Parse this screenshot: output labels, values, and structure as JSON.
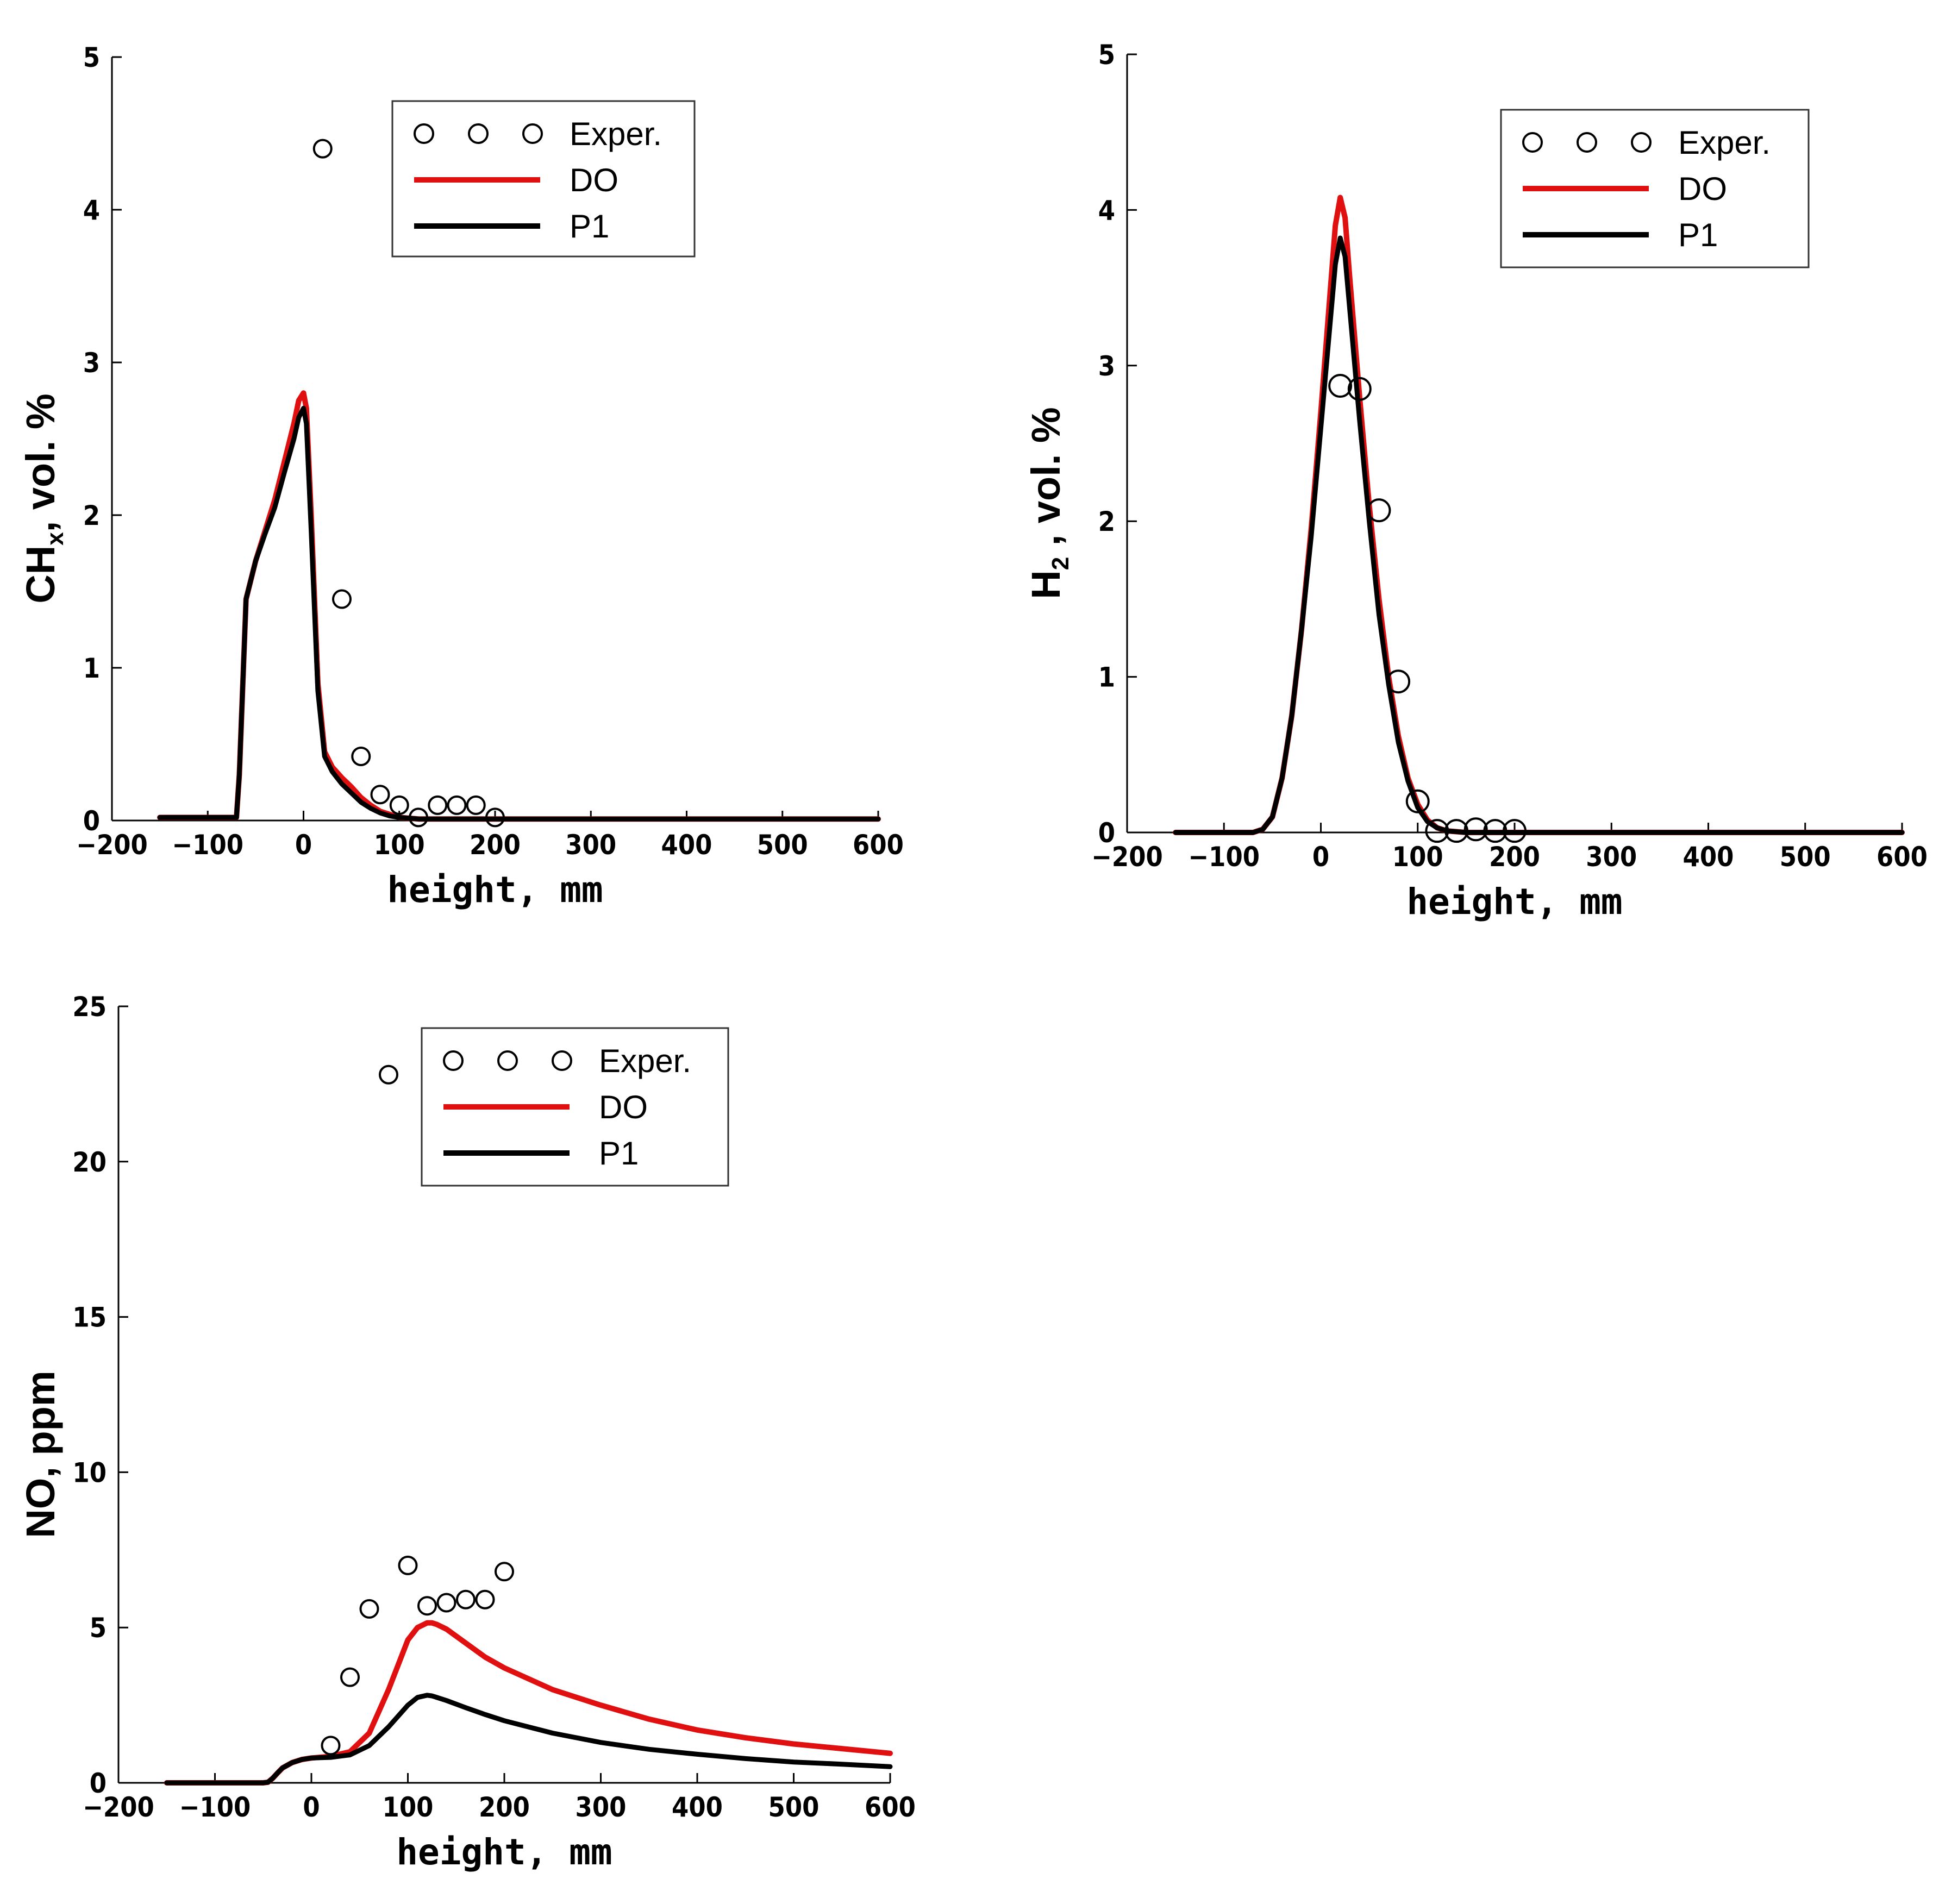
{
  "chart_data": [
    {
      "id": "chx",
      "type": "line",
      "xlabel": "height, mm",
      "ylabel": {
        "main": "CH",
        "sub": "x",
        "rest": ", vol. %"
      },
      "xlim": [
        -200,
        600
      ],
      "ylim": [
        0,
        5
      ],
      "xticks": [
        "-200",
        "-100",
        "0",
        "100",
        "200",
        "300",
        "400",
        "500",
        "600"
      ],
      "yticks": [
        "0",
        "1",
        "2",
        "3",
        "4",
        "5"
      ],
      "legend": [
        "Exper.",
        "DO",
        "P1"
      ],
      "colors": {
        "DO": "#e01010",
        "P1": "#000000",
        "Exper": "#000000"
      },
      "series": [
        {
          "name": "Exper.",
          "kind": "markers",
          "x": [
            20,
            40,
            60,
            80,
            100,
            120,
            140,
            160,
            180,
            200
          ],
          "y": [
            4.4,
            1.45,
            0.42,
            0.17,
            0.1,
            0.02,
            0.1,
            0.1,
            0.1,
            0.02
          ]
        },
        {
          "name": "DO",
          "kind": "line",
          "x": [
            -150,
            -120,
            -70,
            -67,
            -60,
            -50,
            -40,
            -30,
            -20,
            -10,
            -5,
            0,
            3,
            8,
            15,
            22,
            30,
            40,
            50,
            60,
            70,
            80,
            90,
            100,
            120,
            150,
            200,
            300,
            400,
            500,
            600
          ],
          "y": [
            0.02,
            0.02,
            0.02,
            0.3,
            1.45,
            1.7,
            1.9,
            2.1,
            2.35,
            2.6,
            2.75,
            2.8,
            2.7,
            2.0,
            0.9,
            0.45,
            0.35,
            0.28,
            0.22,
            0.15,
            0.1,
            0.06,
            0.04,
            0.02,
            0.01,
            0.01,
            0.01,
            0.01,
            0.01,
            0.01,
            0.01
          ]
        },
        {
          "name": "P1",
          "kind": "line",
          "x": [
            -150,
            -120,
            -70,
            -67,
            -60,
            -50,
            -40,
            -30,
            -20,
            -10,
            -5,
            0,
            3,
            8,
            15,
            22,
            30,
            40,
            50,
            60,
            70,
            80,
            90,
            100,
            120,
            150,
            200,
            300,
            400,
            500,
            600
          ],
          "y": [
            0.02,
            0.02,
            0.02,
            0.3,
            1.45,
            1.7,
            1.88,
            2.05,
            2.28,
            2.5,
            2.64,
            2.7,
            2.6,
            1.9,
            0.85,
            0.42,
            0.32,
            0.24,
            0.18,
            0.12,
            0.08,
            0.05,
            0.03,
            0.02,
            0.01,
            0.01,
            0.01,
            0.01,
            0.01,
            0.01,
            0.01
          ]
        }
      ]
    },
    {
      "id": "h2",
      "type": "line",
      "xlabel": "height, mm",
      "ylabel": {
        "main": "H",
        "sub": "2",
        "rest": " , vol. %"
      },
      "xlim": [
        -200,
        600
      ],
      "ylim": [
        0,
        5
      ],
      "xticks": [
        "-200",
        "-100",
        "0",
        "100",
        "200",
        "300",
        "400",
        "500",
        "600"
      ],
      "yticks": [
        "0",
        "1",
        "2",
        "3",
        "4",
        "5"
      ],
      "legend": [
        "Exper.",
        "DO",
        "P1"
      ],
      "colors": {
        "DO": "#e01010",
        "P1": "#000000",
        "Exper": "#000000"
      },
      "series": [
        {
          "name": "Exper.",
          "kind": "markers",
          "x": [
            20,
            40,
            60,
            80,
            100,
            120,
            140,
            160,
            180,
            200
          ],
          "y": [
            2.87,
            2.85,
            2.07,
            0.97,
            0.2,
            0.01,
            0.01,
            0.02,
            0.01,
            0.01
          ]
        },
        {
          "name": "DO",
          "kind": "line",
          "x": [
            -150,
            -70,
            -60,
            -50,
            -40,
            -30,
            -20,
            -10,
            0,
            10,
            15,
            20,
            25,
            30,
            40,
            50,
            60,
            70,
            80,
            90,
            100,
            110,
            120,
            130,
            150,
            200,
            300,
            400,
            500,
            600
          ],
          "y": [
            0,
            0,
            0.02,
            0.1,
            0.35,
            0.75,
            1.3,
            1.95,
            2.7,
            3.5,
            3.9,
            4.08,
            3.95,
            3.55,
            2.8,
            2.1,
            1.5,
            1.0,
            0.62,
            0.35,
            0.18,
            0.08,
            0.03,
            0.01,
            0,
            0,
            0,
            0,
            0,
            0
          ]
        },
        {
          "name": "P1",
          "kind": "line",
          "x": [
            -150,
            -70,
            -60,
            -50,
            -40,
            -30,
            -20,
            -10,
            0,
            10,
            15,
            20,
            25,
            30,
            40,
            50,
            60,
            70,
            80,
            90,
            100,
            110,
            120,
            130,
            150,
            200,
            300,
            400,
            500,
            600
          ],
          "y": [
            0,
            0,
            0.02,
            0.1,
            0.35,
            0.75,
            1.3,
            1.9,
            2.6,
            3.3,
            3.65,
            3.82,
            3.7,
            3.35,
            2.65,
            2.0,
            1.4,
            0.95,
            0.58,
            0.33,
            0.16,
            0.07,
            0.03,
            0.01,
            0,
            0,
            0,
            0,
            0,
            0
          ]
        }
      ]
    },
    {
      "id": "no",
      "type": "line",
      "xlabel": "height, mm",
      "ylabel": {
        "main": "NO, ppm",
        "sub": "",
        "rest": ""
      },
      "xlim": [
        -200,
        600
      ],
      "ylim": [
        0,
        25
      ],
      "xticks": [
        "-200",
        "-100",
        "0",
        "100",
        "200",
        "300",
        "400",
        "500",
        "600"
      ],
      "yticks": [
        "0",
        "5",
        "10",
        "15",
        "20",
        "25"
      ],
      "legend": [
        "Exper.",
        "DO",
        "P1"
      ],
      "colors": {
        "DO": "#e01010",
        "P1": "#000000",
        "Exper": "#000000"
      },
      "series": [
        {
          "name": "Exper.",
          "kind": "markers",
          "x": [
            20,
            40,
            60,
            80,
            100,
            120,
            140,
            160,
            180,
            200
          ],
          "y": [
            1.2,
            3.4,
            5.6,
            22.8,
            7.0,
            5.7,
            5.8,
            5.9,
            5.9,
            6.8
          ]
        },
        {
          "name": "DO",
          "kind": "line",
          "x": [
            -150,
            -50,
            -45,
            -40,
            -35,
            -30,
            -20,
            -10,
            0,
            20,
            40,
            60,
            80,
            100,
            110,
            120,
            125,
            130,
            140,
            160,
            180,
            200,
            250,
            300,
            350,
            400,
            450,
            500,
            550,
            600
          ],
          "y": [
            0,
            0,
            0.02,
            0.15,
            0.32,
            0.48,
            0.65,
            0.75,
            0.8,
            0.85,
            1.0,
            1.6,
            3.0,
            4.6,
            5.0,
            5.15,
            5.15,
            5.1,
            4.95,
            4.5,
            4.05,
            3.7,
            3.0,
            2.5,
            2.05,
            1.7,
            1.45,
            1.25,
            1.1,
            0.95
          ]
        },
        {
          "name": "P1",
          "kind": "line",
          "x": [
            -150,
            -50,
            -45,
            -40,
            -35,
            -30,
            -20,
            -10,
            0,
            20,
            40,
            60,
            80,
            100,
            110,
            120,
            125,
            130,
            140,
            160,
            180,
            200,
            250,
            300,
            350,
            400,
            450,
            500,
            550,
            600
          ],
          "y": [
            0,
            0,
            0.02,
            0.15,
            0.32,
            0.48,
            0.65,
            0.75,
            0.8,
            0.82,
            0.9,
            1.2,
            1.8,
            2.5,
            2.75,
            2.82,
            2.8,
            2.75,
            2.65,
            2.42,
            2.2,
            2.0,
            1.6,
            1.3,
            1.08,
            0.92,
            0.78,
            0.67,
            0.6,
            0.52
          ]
        }
      ]
    }
  ]
}
